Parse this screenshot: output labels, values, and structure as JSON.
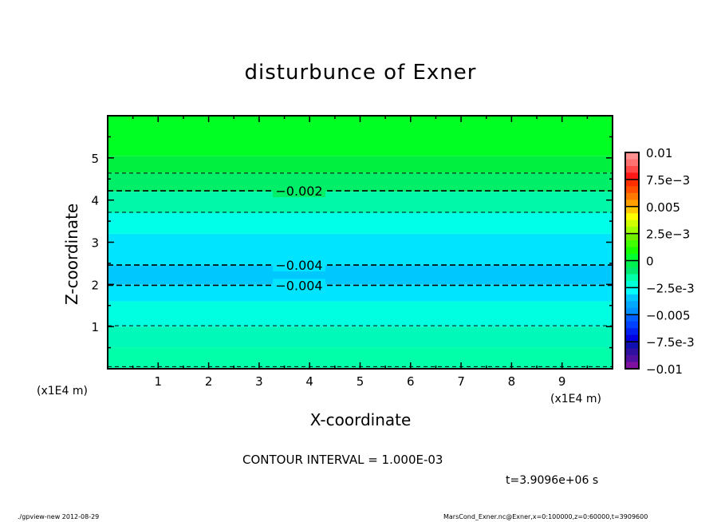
{
  "chart_data": {
    "type": "contour",
    "title": "disturbunce of Exner",
    "xlabel": "X-coordinate",
    "ylabel": "Z-coordinate",
    "x_unit": "(x1E4 m)",
    "y_unit": "(x1E4 m)",
    "xlim": [
      0,
      10
    ],
    "ylim": [
      0,
      6
    ],
    "xticks": [
      "1",
      "2",
      "3",
      "4",
      "5",
      "6",
      "7",
      "8",
      "9"
    ],
    "yticks": [
      "1",
      "2",
      "3",
      "4",
      "5"
    ],
    "contour_interval": "CONTOUR INTERVAL = 1.000E-03",
    "time": "t=3.9096e+06 s",
    "bands": [
      {
        "z": [
          0,
          0.5
        ],
        "color": "#00ffa8"
      },
      {
        "z": [
          0.5,
          1.0
        ],
        "color": "#00f8b8"
      },
      {
        "z": [
          1.0,
          1.6
        ],
        "color": "#00ffe0"
      },
      {
        "z": [
          1.6,
          2.0
        ],
        "color": "#00e4ff"
      },
      {
        "z": [
          2.0,
          2.45
        ],
        "color": "#00c8ff"
      },
      {
        "z": [
          2.45,
          3.2
        ],
        "color": "#00e4ff"
      },
      {
        "z": [
          3.2,
          3.7
        ],
        "color": "#00ffe8"
      },
      {
        "z": [
          3.7,
          4.2
        ],
        "color": "#00f8a8"
      },
      {
        "z": [
          4.2,
          4.65
        ],
        "color": "#00ee68"
      },
      {
        "z": [
          4.65,
          5.05
        ],
        "color": "#00f040"
      },
      {
        "z": [
          5.05,
          6
        ],
        "color": "#00ff22"
      }
    ],
    "contours": [
      {
        "z": 0.05,
        "label": ""
      },
      {
        "z": 1.02,
        "label": ""
      },
      {
        "z": 1.98,
        "label": "-0.004"
      },
      {
        "z": 2.46,
        "label": "-0.004"
      },
      {
        "z": 3.71,
        "label": ""
      },
      {
        "z": 4.22,
        "label": "-0.002"
      },
      {
        "z": 4.64,
        "label": ""
      }
    ],
    "colorbar": {
      "range": [
        -0.01,
        0.01
      ],
      "labels": [
        "0.01",
        "7.5e-3",
        "0.005",
        "2.5e-3",
        "0",
        "-2.5e-3",
        "-0.005",
        "-7.5e-3",
        "-0.01"
      ],
      "colors": [
        "#ff9090",
        "#ff7070",
        "#ff4848",
        "#ff1818",
        "#ff3000",
        "#ff5000",
        "#ff7800",
        "#ffa000",
        "#ffc800",
        "#ffff00",
        "#d0ff00",
        "#a0ff00",
        "#70f000",
        "#40ff00",
        "#18ff00",
        "#00ff30",
        "#00f050",
        "#00e870",
        "#00ffa8",
        "#00ffd8",
        "#00ffff",
        "#00c8ff",
        "#00a8ff",
        "#0090ff",
        "#0060ff",
        "#0040ff",
        "#0020f0",
        "#0000e0",
        "#1010b0",
        "#3010a0",
        "#5010a0",
        "#8010a0"
      ]
    }
  },
  "footer": {
    "left": "./gpview-new  2012-08-29",
    "right": "MarsCond_Exner.nc@Exner,x=0:100000,z=0:60000,t=3909600"
  }
}
